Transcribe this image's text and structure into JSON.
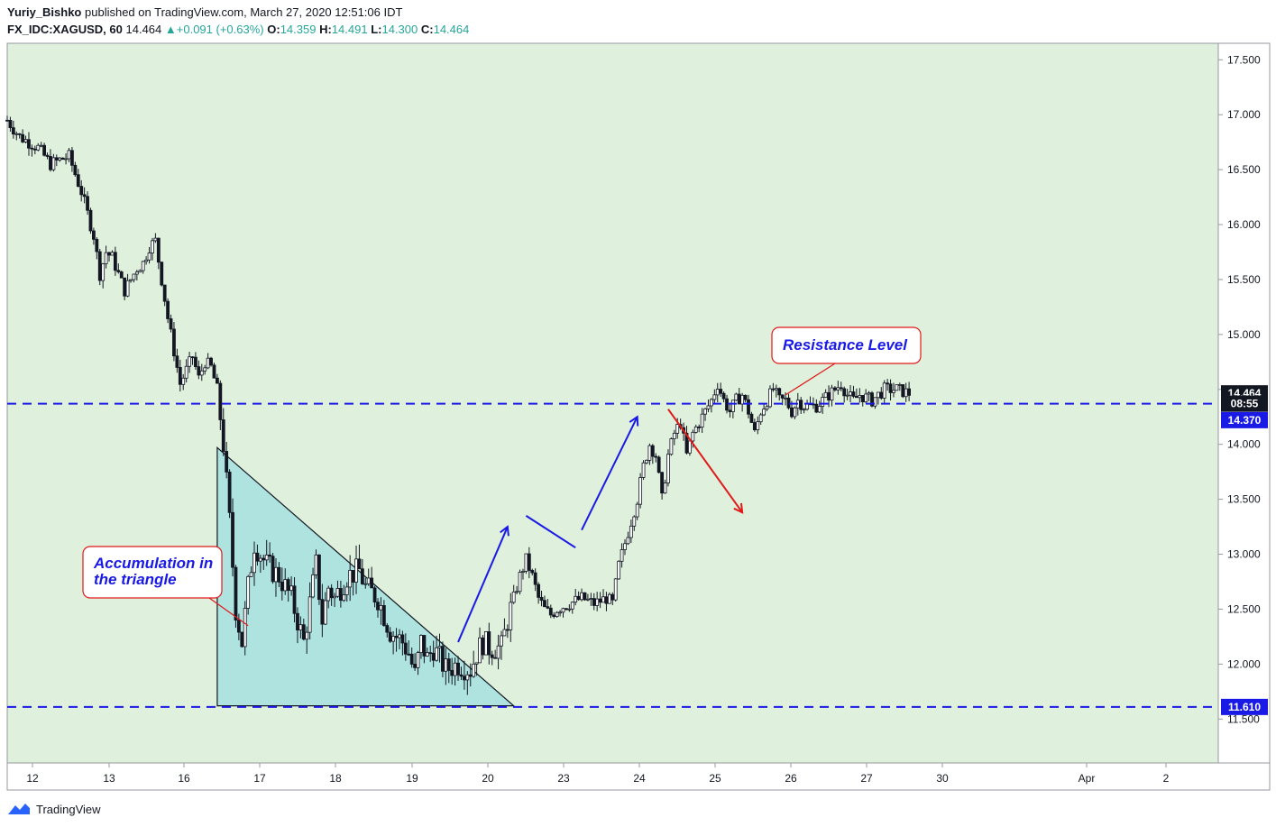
{
  "header": {
    "author": "Yuriy_Bishko",
    "published_text": "published on TradingView.com, March 27, 2020 12:51:06 IDT",
    "symbol": "FX_IDC:XAGUSD, 60",
    "last": "14.464",
    "change": "+0.091 (+0.63%)",
    "o_label": "O:",
    "o": "14.359",
    "h_label": "H:",
    "h": "14.491",
    "l_label": "L:",
    "l": "14.300",
    "c_label": "C:",
    "c": "14.464"
  },
  "footer": {
    "brand": "TradingView"
  },
  "colors": {
    "background": "#dff0dc",
    "candle": "#131722",
    "dashed_line": "#1a1ae6",
    "triangle_fill": "#aee3e0",
    "blue_arrow": "#1a1ae6",
    "red_arrow": "#e01919",
    "price_tag_black": "#131722",
    "price_tag_blue": "#1a1ae6"
  },
  "chart_data": {
    "type": "candlestick",
    "timeframe": "60",
    "x_ticks": [
      "12",
      "13",
      "16",
      "17",
      "18",
      "19",
      "20",
      "23",
      "24",
      "25",
      "26",
      "27",
      "30",
      "Apr",
      "2"
    ],
    "y_ticks": [
      "11.500",
      "12.000",
      "12.500",
      "13.000",
      "13.500",
      "14.000",
      "14.500",
      "15.000",
      "15.500",
      "16.000",
      "16.500",
      "17.000",
      "17.500"
    ],
    "ylim": [
      11.1,
      17.65
    ],
    "price_tags": [
      {
        "value": 14.464,
        "label": "14.464",
        "style": "black"
      },
      {
        "value": 14.37,
        "label": "08:55",
        "style": "black"
      },
      {
        "value": 14.22,
        "label": "14.370",
        "style": "blue"
      },
      {
        "value": 11.61,
        "label": "11.610",
        "style": "blue"
      }
    ],
    "horizontal_lines": [
      {
        "value": 14.37,
        "style": "dashed"
      },
      {
        "value": 11.61,
        "style": "dashed"
      }
    ],
    "path": [
      [
        0,
        16.95
      ],
      [
        2,
        16.8
      ],
      [
        5,
        16.7
      ],
      [
        7,
        16.55
      ],
      [
        9,
        16.6
      ],
      [
        10,
        16.62
      ],
      [
        12,
        16.3
      ],
      [
        14,
        15.9
      ],
      [
        15,
        15.55
      ],
      [
        16,
        15.75
      ],
      [
        17,
        15.7
      ],
      [
        19,
        15.4
      ],
      [
        21,
        15.6
      ],
      [
        22,
        15.65
      ],
      [
        23,
        15.8
      ],
      [
        24,
        15.85
      ],
      [
        25,
        15.5
      ],
      [
        26,
        15.15
      ],
      [
        27,
        14.85
      ],
      [
        28,
        14.55
      ],
      [
        30,
        14.8
      ],
      [
        31,
        14.6
      ],
      [
        32,
        14.75
      ],
      [
        33,
        14.7
      ],
      [
        34,
        14.5
      ],
      [
        35,
        14.0
      ],
      [
        36,
        13.3
      ],
      [
        37,
        12.5
      ],
      [
        38,
        12.2
      ],
      [
        39,
        12.7
      ],
      [
        40,
        13.1
      ],
      [
        42,
        12.9
      ],
      [
        44,
        12.8
      ],
      [
        46,
        12.6
      ],
      [
        48,
        12.2
      ],
      [
        50,
        12.9
      ],
      [
        51,
        12.4
      ],
      [
        52,
        12.7
      ],
      [
        53,
        12.6
      ],
      [
        55,
        12.8
      ],
      [
        57,
        12.85
      ],
      [
        58,
        12.7
      ],
      [
        60,
        12.6
      ],
      [
        62,
        12.3
      ],
      [
        64,
        12.2
      ],
      [
        65,
        12.1
      ],
      [
        66,
        11.9
      ],
      [
        67,
        12.2
      ],
      [
        68,
        12.05
      ],
      [
        69,
        12.15
      ],
      [
        71,
        11.95
      ],
      [
        73,
        12.0
      ],
      [
        75,
        11.95
      ],
      [
        76,
        12.1
      ],
      [
        77,
        12.2
      ],
      [
        78,
        12.15
      ],
      [
        80,
        12.15
      ],
      [
        81,
        12.4
      ],
      [
        82,
        12.6
      ],
      [
        83,
        12.8
      ],
      [
        84,
        12.95
      ],
      [
        85,
        12.8
      ],
      [
        86,
        12.6
      ],
      [
        87,
        12.5
      ],
      [
        88,
        12.45
      ],
      [
        89,
        12.5
      ],
      [
        91,
        12.55
      ],
      [
        93,
        12.6
      ],
      [
        95,
        12.55
      ],
      [
        97,
        12.6
      ],
      [
        98,
        12.55
      ],
      [
        99,
        12.9
      ],
      [
        100,
        13.1
      ],
      [
        101,
        13.3
      ],
      [
        102,
        13.5
      ],
      [
        103,
        13.8
      ],
      [
        104,
        14.0
      ],
      [
        105,
        13.9
      ],
      [
        106,
        13.5
      ],
      [
        107,
        13.9
      ],
      [
        108,
        14.1
      ],
      [
        109,
        14.2
      ],
      [
        110,
        13.9
      ],
      [
        111,
        14.1
      ],
      [
        112,
        14.2
      ],
      [
        113,
        14.3
      ],
      [
        114,
        14.4
      ],
      [
        115,
        14.55
      ],
      [
        116,
        14.4
      ],
      [
        117,
        14.3
      ],
      [
        118,
        14.4
      ],
      [
        119,
        14.45
      ],
      [
        120,
        14.3
      ],
      [
        121,
        14.1
      ],
      [
        122,
        14.3
      ],
      [
        123,
        14.4
      ],
      [
        124,
        14.5
      ],
      [
        125,
        14.4
      ],
      [
        126,
        14.4
      ],
      [
        127,
        14.3
      ],
      [
        128,
        14.4
      ],
      [
        129,
        14.35
      ],
      [
        131,
        14.35
      ],
      [
        132,
        14.4
      ],
      [
        133,
        14.45
      ],
      [
        135,
        14.55
      ],
      [
        136,
        14.45
      ],
      [
        137,
        14.4
      ],
      [
        138,
        14.45
      ],
      [
        140,
        14.4
      ],
      [
        142,
        14.5
      ],
      [
        144,
        14.5
      ],
      [
        146,
        14.464
      ]
    ],
    "annotations": [
      {
        "type": "triangle",
        "text": "",
        "points": [
          [
            34,
            13.97
          ],
          [
            34,
            11.62
          ],
          [
            82,
            11.62
          ]
        ]
      },
      {
        "type": "callout",
        "text_lines": [
          "Accumulation in",
          "the triangle"
        ],
        "pointer_to": [
          39,
          12.35
        ]
      },
      {
        "type": "callout",
        "text_lines": [
          "Resistance Level"
        ],
        "pointer_to": [
          126,
          14.45
        ]
      },
      {
        "type": "arrow",
        "color": "blue",
        "from": [
          73,
          12.2
        ],
        "to": [
          81,
          13.25
        ]
      },
      {
        "type": "line",
        "color": "blue",
        "from": [
          84,
          13.35
        ],
        "to": [
          92,
          13.06
        ]
      },
      {
        "type": "arrow",
        "color": "blue",
        "from": [
          93,
          13.22
        ],
        "to": [
          102,
          14.25
        ]
      },
      {
        "type": "arrow",
        "color": "red",
        "from": [
          107,
          14.32
        ],
        "to": [
          119,
          13.38
        ]
      }
    ]
  }
}
